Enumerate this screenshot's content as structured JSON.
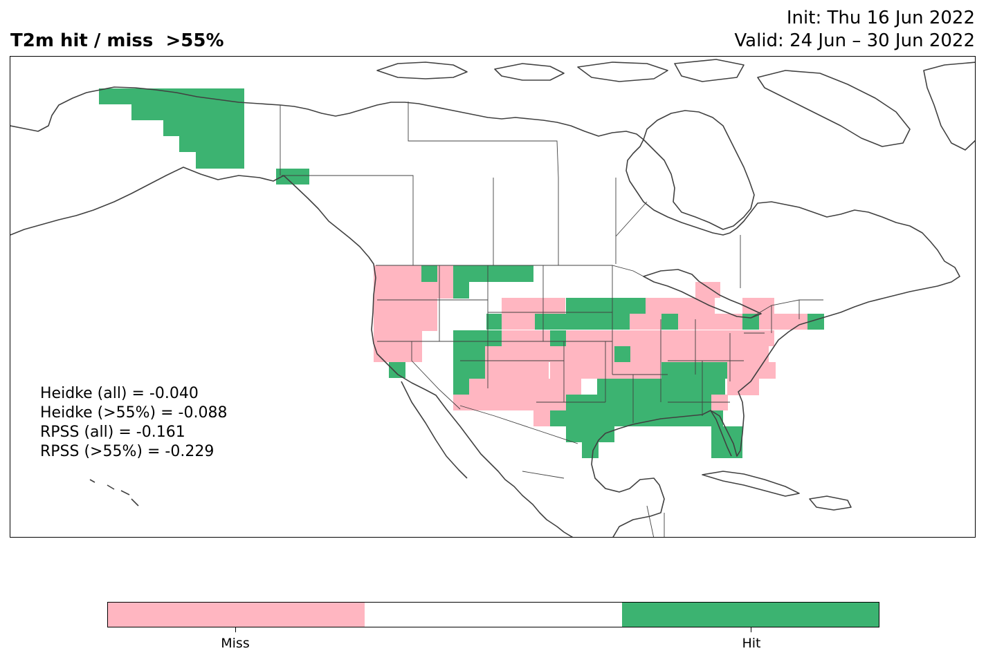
{
  "title": "T2m hit / miss  >55%",
  "init": "Init: Thu 16 Jun 2022",
  "valid": "Valid: 24 Jun – 30 Jun 2022",
  "scores": [
    "Heidke (all) = -0.040",
    "Heidke (>55%) = -0.088",
    "RPSS (all) = -0.161",
    "RPSS (>55%) = -0.229"
  ],
  "colorbar": {
    "labels": [
      "Miss",
      "",
      "Hit"
    ],
    "colors": [
      "#ffb6c1",
      "#ffffff",
      "#3cb371"
    ]
  },
  "colors": {
    "miss": "#ffb6c1",
    "hit": "#3cb371",
    "coast": "#404040"
  }
}
